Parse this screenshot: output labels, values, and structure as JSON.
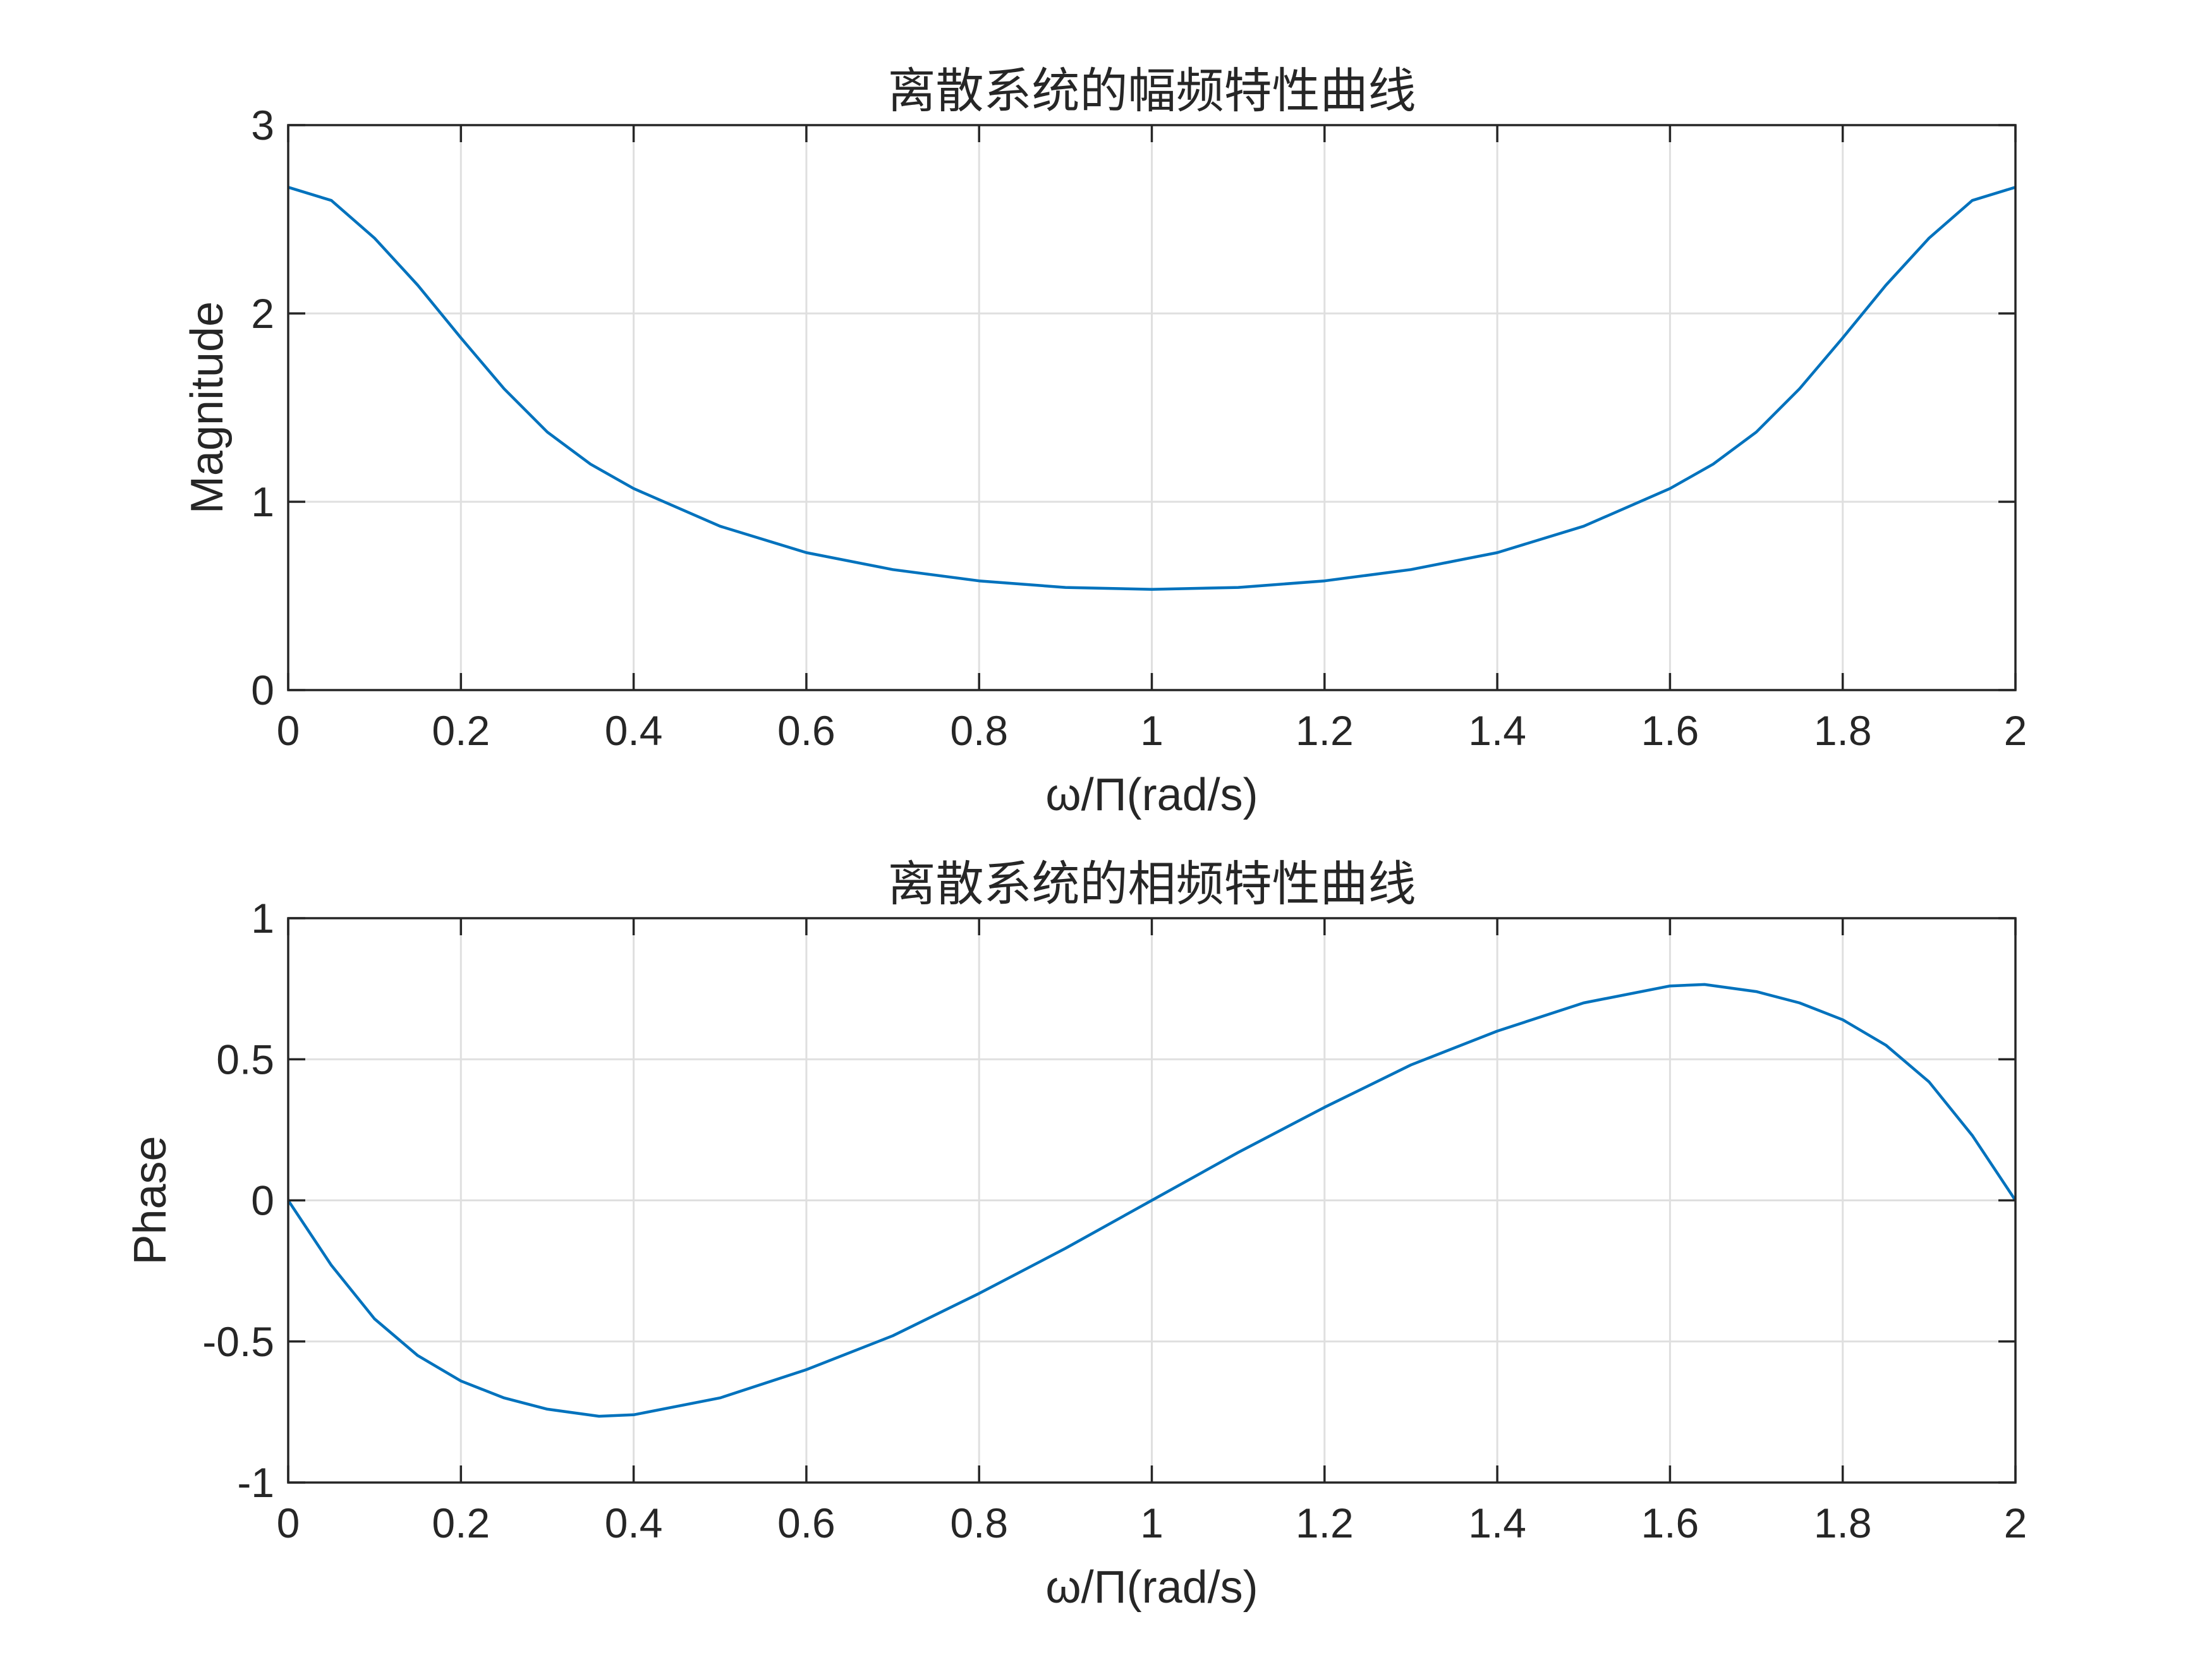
{
  "chart_data": [
    {
      "type": "line",
      "title": "离散系统的幅频特性曲线",
      "xlabel": "ω/Π(rad/s)",
      "ylabel": "Magnitude",
      "xlim": [
        0,
        2
      ],
      "ylim": [
        0,
        3
      ],
      "xticks": [
        0,
        0.2,
        0.4,
        0.6,
        0.8,
        1,
        1.2,
        1.4,
        1.6,
        1.8,
        2
      ],
      "xtick_labels": [
        "0",
        "0.2",
        "0.4",
        "0.6",
        "0.8",
        "1",
        "1.2",
        "1.4",
        "1.6",
        "1.8",
        "2"
      ],
      "yticks": [
        0,
        1,
        2,
        3
      ],
      "ytick_labels": [
        "0",
        "1",
        "2",
        "3"
      ],
      "grid": true,
      "line_color": "#0072BD",
      "series": [
        {
          "x": [
            0,
            0.05,
            0.1,
            0.15,
            0.2,
            0.25,
            0.3,
            0.35,
            0.4,
            0.5,
            0.6,
            0.7,
            0.8,
            0.9,
            1.0,
            1.1,
            1.2,
            1.3,
            1.4,
            1.5,
            1.6,
            1.65,
            1.7,
            1.75,
            1.8,
            1.85,
            1.9,
            1.95,
            2.0
          ],
          "y": [
            2.67,
            2.6,
            2.4,
            2.15,
            1.87,
            1.6,
            1.37,
            1.2,
            1.07,
            0.87,
            0.73,
            0.64,
            0.58,
            0.545,
            0.535,
            0.545,
            0.58,
            0.64,
            0.73,
            0.87,
            1.07,
            1.2,
            1.37,
            1.6,
            1.87,
            2.15,
            2.4,
            2.6,
            2.67
          ]
        }
      ]
    },
    {
      "type": "line",
      "title": "离散系统的相频特性曲线",
      "xlabel": "ω/Π(rad/s)",
      "ylabel": "Phase",
      "xlim": [
        0,
        2
      ],
      "ylim": [
        -1,
        1
      ],
      "xticks": [
        0,
        0.2,
        0.4,
        0.6,
        0.8,
        1,
        1.2,
        1.4,
        1.6,
        1.8,
        2
      ],
      "xtick_labels": [
        "0",
        "0.2",
        "0.4",
        "0.6",
        "0.8",
        "1",
        "1.2",
        "1.4",
        "1.6",
        "1.8",
        "2"
      ],
      "yticks": [
        -1,
        -0.5,
        0,
        0.5,
        1
      ],
      "ytick_labels": [
        "-1",
        "-0.5",
        "0",
        "0.5",
        "1"
      ],
      "grid": true,
      "line_color": "#0072BD",
      "series": [
        {
          "x": [
            0,
            0.05,
            0.1,
            0.15,
            0.2,
            0.25,
            0.3,
            0.36,
            0.4,
            0.5,
            0.6,
            0.7,
            0.8,
            0.9,
            1.0,
            1.1,
            1.2,
            1.3,
            1.4,
            1.5,
            1.6,
            1.64,
            1.7,
            1.75,
            1.8,
            1.85,
            1.9,
            1.95,
            2.0
          ],
          "y": [
            0,
            -0.23,
            -0.42,
            -0.55,
            -0.64,
            -0.7,
            -0.74,
            -0.765,
            -0.76,
            -0.7,
            -0.6,
            -0.48,
            -0.33,
            -0.17,
            0,
            0.17,
            0.33,
            0.48,
            0.6,
            0.7,
            0.76,
            0.765,
            0.74,
            0.7,
            0.64,
            0.55,
            0.42,
            0.23,
            0
          ]
        }
      ]
    }
  ]
}
